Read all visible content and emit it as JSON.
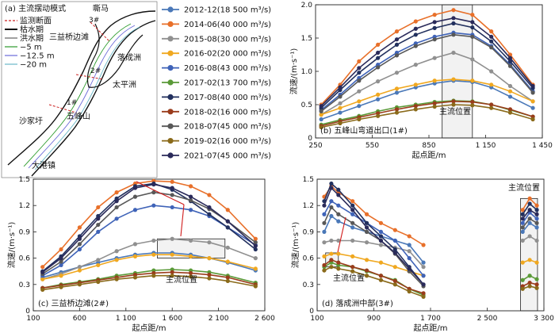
{
  "map": {
    "title": "(a) 主流摆动模式",
    "legend": [
      "监测断面",
      "枯水期",
      "洪水期",
      "−5 m",
      "−12.5 m",
      "−20 m"
    ],
    "legend_colors": [
      "#cc2222",
      "#111111",
      "#111111",
      "#2a9a2a",
      "#6a6ad8",
      "#6ab8c8"
    ],
    "places": [
      "嘶马",
      "三益桥边滩",
      "落成洲",
      "太平洲",
      "五峰山",
      "沙家圩",
      "大港镇"
    ],
    "sections": [
      "3#",
      "2#",
      "1#"
    ]
  },
  "legend": [
    {
      "label": "2012-12(18 500 m³/s)",
      "color": "#4a78b8"
    },
    {
      "label": "2014-06(40 000 m³/s)",
      "color": "#e8702a"
    },
    {
      "label": "2015-08(30 000 m³/s)",
      "color": "#909090"
    },
    {
      "label": "2016-02(20 000 m³/s)",
      "color": "#f0a820"
    },
    {
      "label": "2016-08(43 000 m³/s)",
      "color": "#3f63b8"
    },
    {
      "label": "2017-02(13 700 m³/s)",
      "color": "#5a9a38"
    },
    {
      "label": "2017-08(40 000 m³/s)",
      "color": "#22305e"
    },
    {
      "label": "2018-02(16 000 m³/s)",
      "color": "#9a3c1c"
    },
    {
      "label": "2018-07(45 000 m³/s)",
      "color": "#585858"
    },
    {
      "label": "2019-02(16 000 m³/s)",
      "color": "#8a6a1a"
    },
    {
      "label": "2021-07(45 000 m³/s)",
      "color": "#2a2a5a"
    }
  ],
  "chart_data": [
    {
      "type": "line",
      "title": "(b) 五峰山弯道出口(1#)",
      "xlabel": "起点距/m",
      "ylabel": "流速/(m·s⁻¹)",
      "xlim": [
        250,
        1450
      ],
      "ylim": [
        0,
        2
      ],
      "xticks": [
        250,
        550,
        850,
        1150,
        1450
      ],
      "xticklabels": [
        "250",
        "550",
        "850",
        "1 150",
        "1 450"
      ],
      "yticks": [
        0,
        0.5,
        1,
        1.5,
        2
      ],
      "yticklabels": [
        "0",
        "0.5",
        "1.0",
        "1.5",
        "2.0"
      ],
      "annotation": "主流位置",
      "highlight_x": [
        920,
        1080
      ],
      "x": [
        280,
        380,
        480,
        580,
        680,
        780,
        880,
        980,
        1080,
        1180,
        1280,
        1400
      ],
      "series": [
        {
          "values": [
            0.28,
            0.38,
            0.48,
            0.58,
            0.68,
            0.76,
            0.82,
            0.86,
            0.84,
            0.76,
            0.62,
            0.45
          ]
        },
        {
          "values": [
            0.5,
            0.8,
            1.15,
            1.4,
            1.6,
            1.75,
            1.85,
            1.92,
            1.85,
            1.6,
            1.25,
            0.8
          ]
        },
        {
          "values": [
            0.35,
            0.52,
            0.7,
            0.85,
            0.98,
            1.1,
            1.2,
            1.28,
            1.18,
            1.0,
            0.78,
            0.55
          ]
        },
        {
          "values": [
            0.35,
            0.45,
            0.55,
            0.65,
            0.74,
            0.8,
            0.86,
            0.88,
            0.86,
            0.8,
            0.7,
            0.55
          ]
        },
        {
          "values": [
            0.42,
            0.65,
            0.9,
            1.1,
            1.28,
            1.42,
            1.52,
            1.58,
            1.55,
            1.38,
            1.1,
            0.7
          ]
        },
        {
          "values": [
            0.2,
            0.27,
            0.33,
            0.4,
            0.46,
            0.5,
            0.54,
            0.56,
            0.55,
            0.5,
            0.42,
            0.32
          ]
        },
        {
          "values": [
            0.45,
            0.72,
            0.98,
            1.2,
            1.4,
            1.55,
            1.65,
            1.72,
            1.66,
            1.45,
            1.15,
            0.75
          ]
        },
        {
          "values": [
            0.18,
            0.25,
            0.31,
            0.37,
            0.43,
            0.48,
            0.52,
            0.55,
            0.54,
            0.5,
            0.43,
            0.32
          ]
        },
        {
          "values": [
            0.4,
            0.62,
            0.86,
            1.06,
            1.24,
            1.38,
            1.48,
            1.55,
            1.52,
            1.36,
            1.08,
            0.68
          ]
        },
        {
          "values": [
            0.16,
            0.22,
            0.28,
            0.33,
            0.38,
            0.43,
            0.47,
            0.5,
            0.49,
            0.45,
            0.38,
            0.28
          ]
        },
        {
          "values": [
            0.48,
            0.76,
            1.05,
            1.28,
            1.48,
            1.64,
            1.74,
            1.8,
            1.74,
            1.52,
            1.2,
            0.78
          ]
        }
      ]
    },
    {
      "type": "line",
      "title": "(c) 三益桥边滩(2#)",
      "xlabel": "起点距/m",
      "ylabel": "流速/(m·s⁻¹)",
      "xlim": [
        100,
        2600
      ],
      "ylim": [
        0,
        1.5
      ],
      "xticks": [
        100,
        600,
        1100,
        1600,
        2100,
        2600
      ],
      "xticklabels": [
        "100",
        "600",
        "1 100",
        "1 600",
        "2 100",
        "2 600"
      ],
      "yticks": [
        0,
        0.3,
        0.6,
        0.9,
        1.2,
        1.5
      ],
      "yticklabels": [
        "0",
        "0.3",
        "0.6",
        "0.9",
        "1.2",
        "1.5"
      ],
      "annotation": "主流位置",
      "highlight_x": [
        1440,
        2170
      ],
      "x": [
        200,
        400,
        600,
        800,
        1000,
        1200,
        1400,
        1600,
        1800,
        2000,
        2200,
        2500
      ],
      "series": [
        {
          "values": [
            0.38,
            0.44,
            0.5,
            0.55,
            0.6,
            0.64,
            0.66,
            0.66,
            0.64,
            0.6,
            0.55,
            0.46
          ]
        },
        {
          "values": [
            0.5,
            0.7,
            0.95,
            1.18,
            1.35,
            1.45,
            1.48,
            1.47,
            1.42,
            1.32,
            1.15,
            0.82
          ]
        },
        {
          "values": [
            0.36,
            0.42,
            0.5,
            0.58,
            0.68,
            0.76,
            0.8,
            0.82,
            0.8,
            0.78,
            0.72,
            0.6
          ]
        },
        {
          "values": [
            0.36,
            0.4,
            0.46,
            0.52,
            0.58,
            0.62,
            0.64,
            0.64,
            0.62,
            0.6,
            0.56,
            0.48
          ]
        },
        {
          "values": [
            0.4,
            0.52,
            0.7,
            0.9,
            1.05,
            1.15,
            1.2,
            1.18,
            1.15,
            1.08,
            0.95,
            0.75
          ]
        },
        {
          "values": [
            0.26,
            0.3,
            0.33,
            0.36,
            0.4,
            0.43,
            0.46,
            0.47,
            0.46,
            0.44,
            0.4,
            0.32
          ]
        },
        {
          "values": [
            0.45,
            0.62,
            0.85,
            1.08,
            1.28,
            1.42,
            1.45,
            1.38,
            1.25,
            1.1,
            0.95,
            0.7
          ]
        },
        {
          "values": [
            0.26,
            0.29,
            0.32,
            0.35,
            0.38,
            0.41,
            0.43,
            0.44,
            0.43,
            0.41,
            0.38,
            0.3
          ]
        },
        {
          "values": [
            0.42,
            0.56,
            0.76,
            0.98,
            1.18,
            1.3,
            1.35,
            1.32,
            1.26,
            1.16,
            1.02,
            0.78
          ]
        },
        {
          "values": [
            0.24,
            0.27,
            0.3,
            0.33,
            0.36,
            0.38,
            0.4,
            0.4,
            0.39,
            0.37,
            0.34,
            0.28
          ]
        },
        {
          "values": [
            0.44,
            0.6,
            0.82,
            1.05,
            1.25,
            1.4,
            1.44,
            1.4,
            1.3,
            1.18,
            1.02,
            0.74
          ]
        }
      ]
    },
    {
      "type": "line",
      "title": "(d) 落成洲中部(3#)",
      "xlabel": "起点距/m",
      "ylabel": "流速/(m·s⁻¹)",
      "xlim": [
        100,
        3300
      ],
      "ylim": [
        0,
        1.5
      ],
      "xticks": [
        100,
        900,
        1700,
        2500,
        3300
      ],
      "xticklabels": [
        "100",
        "900",
        "1 700",
        "2 500",
        "3 300"
      ],
      "yticks": [
        0,
        0.3,
        0.6,
        0.9,
        1.2,
        1.5
      ],
      "yticklabels": [
        "0",
        "0.3",
        "0.6",
        "0.9",
        "1.2",
        "1.5"
      ],
      "annotation": "主流位置",
      "annotation2": "主流位置",
      "highlight_x": [
        220,
        400
      ],
      "highlight_x2": [
        2970,
        3210
      ],
      "x": [
        200,
        300,
        400,
        600,
        800,
        1000,
        1200,
        1400,
        1600
      ],
      "x2": [
        3000,
        3100,
        3200
      ],
      "series": [
        {
          "values": [
            0.9,
            1.08,
            1.02,
            0.95,
            0.9,
            0.85,
            0.8,
            0.75,
            0.55
          ],
          "values2": [
            0.9,
            1.0,
            0.95
          ]
        },
        {
          "values": [
            1.3,
            1.42,
            1.35,
            1.25,
            1.1,
            1.0,
            0.92,
            0.85,
            0.75
          ],
          "values2": [
            1.15,
            1.28,
            1.2
          ]
        },
        {
          "values": [
            0.78,
            0.8,
            0.8,
            0.8,
            0.78,
            0.75,
            0.72,
            0.68,
            0.5
          ],
          "values2": [
            0.8,
            0.85,
            0.8
          ]
        },
        {
          "values": [
            0.62,
            0.65,
            0.65,
            0.62,
            0.58,
            0.55,
            0.5,
            0.45,
            0.4
          ],
          "values2": [
            0.55,
            0.58,
            0.55
          ]
        },
        {
          "values": [
            1.1,
            1.25,
            1.2,
            1.1,
            1.0,
            0.9,
            0.8,
            0.6,
            0.4
          ],
          "values2": [
            1.0,
            1.12,
            1.05
          ]
        },
        {
          "values": [
            0.5,
            0.55,
            0.52,
            0.5,
            0.45,
            0.4,
            0.35,
            0.25,
            0.18
          ],
          "values2": [
            0.35,
            0.4,
            0.36
          ]
        },
        {
          "values": [
            1.25,
            1.45,
            1.38,
            1.2,
            1.0,
            0.85,
            0.7,
            0.5,
            0.3
          ],
          "values2": [
            1.1,
            1.22,
            1.15
          ]
        },
        {
          "values": [
            0.52,
            0.58,
            0.55,
            0.5,
            0.46,
            0.4,
            0.34,
            0.25,
            0.2
          ],
          "values2": [
            0.28,
            0.32,
            0.3
          ]
        },
        {
          "values": [
            1.0,
            1.18,
            1.1,
            1.0,
            0.9,
            0.8,
            0.65,
            0.45,
            0.28
          ],
          "values2": [
            0.95,
            1.05,
            1.0
          ]
        },
        {
          "values": [
            0.46,
            0.5,
            0.48,
            0.45,
            0.4,
            0.35,
            0.3,
            0.22,
            0.16
          ],
          "values2": [
            0.25,
            0.28,
            0.26
          ]
        },
        {
          "values": [
            1.2,
            1.4,
            1.32,
            1.15,
            0.95,
            0.8,
            0.66,
            0.48,
            0.3
          ],
          "values2": [
            1.05,
            1.15,
            1.1
          ]
        }
      ]
    }
  ]
}
